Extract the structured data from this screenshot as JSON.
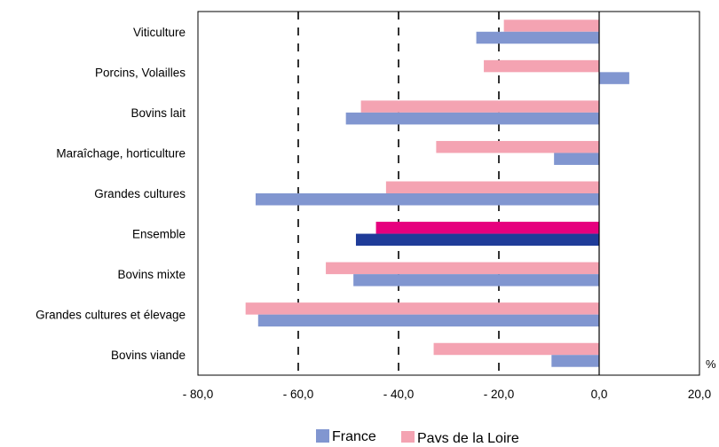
{
  "chart_data": {
    "type": "bar",
    "orientation": "horizontal",
    "categories": [
      "Viticulture",
      "Porcins, Volailles",
      "Bovins lait",
      "Maraîchage, horticulture",
      "Grandes cultures",
      "Ensemble",
      "Bovins mixte",
      "Grandes cultures et élevage",
      "Bovins viande"
    ],
    "series": [
      {
        "name": "Pays de la Loire",
        "color": "#f4a3b2",
        "highlight_color": "#e6007e",
        "values": [
          -19,
          -23,
          -47.5,
          -32.5,
          -42.5,
          -44.5,
          -54.5,
          -70.5,
          -33
        ]
      },
      {
        "name": "France",
        "color": "#8196d0",
        "highlight_color": "#1f3c99",
        "values": [
          -24.5,
          6,
          -50.5,
          -9,
          -68.5,
          -48.5,
          -49,
          -68,
          -9.5
        ]
      }
    ],
    "highlight_category": "Ensemble",
    "xlim": [
      -80,
      20
    ],
    "xticks": [
      "- 80,0",
      "- 60,0",
      "- 40,0",
      "- 20,0",
      "0,0",
      "20,0"
    ],
    "xtick_values": [
      -80,
      -60,
      -40,
      -20,
      0,
      20
    ],
    "unit": "%",
    "grid": "dashed vertical lines at -60, -40, -20; solid line at 0",
    "legend": {
      "placement": "bottom-center",
      "items": [
        {
          "name": "France",
          "color": "#8196d0"
        },
        {
          "name": "Pays de la Loire",
          "color": "#f4a3b2"
        }
      ]
    },
    "title": "",
    "xlabel": "",
    "ylabel": ""
  }
}
